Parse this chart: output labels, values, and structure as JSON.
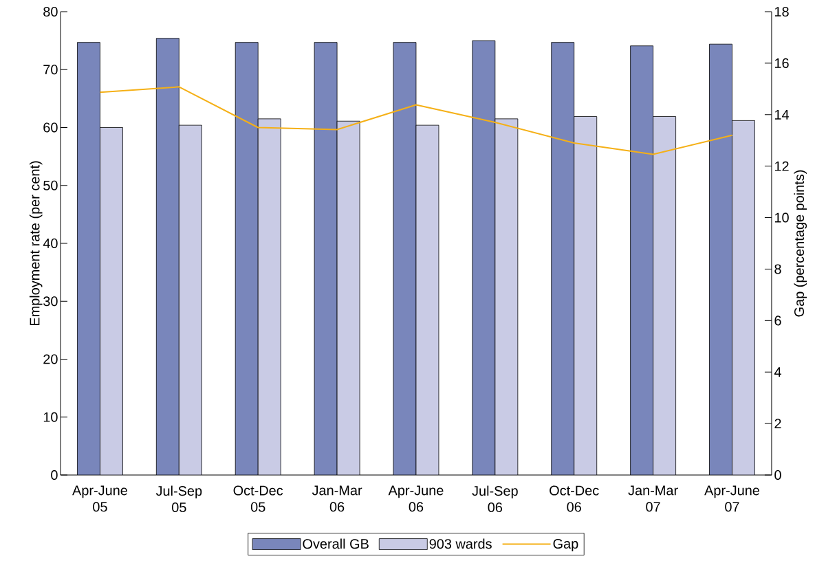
{
  "chart_data": {
    "type": "bar",
    "ylabel": "Employment rate (per cent)",
    "y2label": "Gap (percentage points)",
    "categories": [
      "Apr-June 05",
      "Jul-Sep 05",
      "Oct-Dec 05",
      "Jan-Mar 06",
      "Apr-June 06",
      "Jul-Sep 06",
      "Oct-Dec 06",
      "Jan-Mar 07",
      "Apr-June 07"
    ],
    "series": [
      {
        "name": "Overall GB",
        "color": "#7986bb",
        "values": [
          74.7,
          75.4,
          74.7,
          74.7,
          74.7,
          75.0,
          74.7,
          74.1,
          74.4
        ]
      },
      {
        "name": "903 wards",
        "color": "#c9cbe5",
        "values": [
          60.0,
          60.4,
          61.5,
          61.1,
          60.4,
          61.5,
          61.9,
          61.9,
          61.2
        ]
      },
      {
        "name": "Gap",
        "type": "line",
        "axis": "y2",
        "color": "#f5b016",
        "values": [
          14.87,
          15.08,
          13.5,
          13.42,
          14.38,
          13.7,
          12.9,
          12.46,
          13.2
        ]
      }
    ],
    "ylim": [
      0,
      80
    ],
    "yticks": [
      0,
      10,
      20,
      30,
      40,
      50,
      60,
      70,
      80
    ],
    "y2lim": [
      0,
      18
    ],
    "y2ticks": [
      0,
      2,
      4,
      6,
      8,
      10,
      12,
      14,
      16,
      18
    ],
    "legend": "bottom",
    "grid": false,
    "marker": "none"
  }
}
